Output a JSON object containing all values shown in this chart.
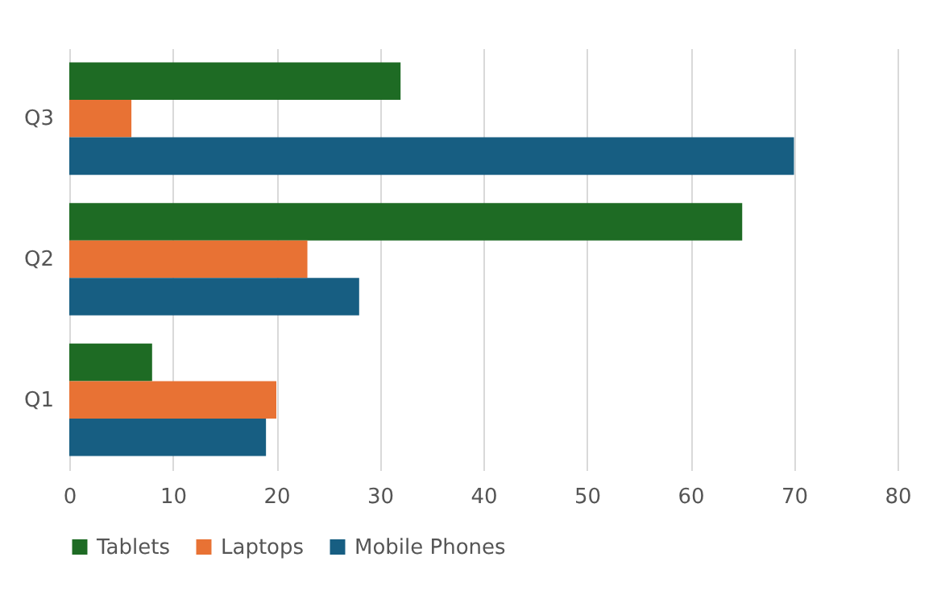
{
  "chart_data": {
    "type": "bar",
    "orientation": "horizontal",
    "categories": [
      "Q3",
      "Q2",
      "Q1"
    ],
    "series": [
      {
        "name": "Tablets",
        "color": "#1e6b24",
        "values": [
          32,
          65,
          8
        ]
      },
      {
        "name": "Laptops",
        "color": "#e87234",
        "values": [
          6,
          23,
          20
        ]
      },
      {
        "name": "Mobile Phones",
        "color": "#175e82",
        "values": [
          70,
          28,
          19
        ]
      }
    ],
    "xlim": [
      0,
      80
    ],
    "xticks": [
      0,
      10,
      20,
      30,
      40,
      50,
      60,
      70,
      80
    ],
    "grid": "x",
    "legend": "bottom"
  }
}
